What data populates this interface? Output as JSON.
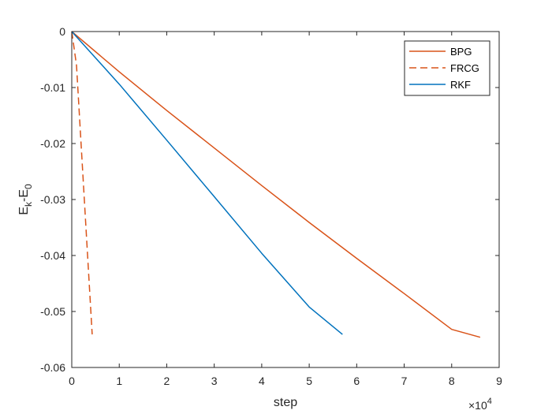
{
  "chart_data": {
    "type": "line",
    "xlabel": "step",
    "ylabel": "E_k-E_0",
    "x_exponent_label": "×10",
    "x_exponent_power": "4",
    "xlim": [
      0,
      9
    ],
    "ylim": [
      -0.06,
      0
    ],
    "x_ticks": [
      0,
      1,
      2,
      3,
      4,
      5,
      6,
      7,
      8,
      9
    ],
    "x_tick_labels": [
      "0",
      "1",
      "2",
      "3",
      "4",
      "5",
      "6",
      "7",
      "8",
      "9"
    ],
    "y_ticks": [
      0,
      -0.01,
      -0.02,
      -0.03,
      -0.04,
      -0.05,
      -0.06
    ],
    "y_tick_labels": [
      "0",
      "-0.01",
      "-0.02",
      "-0.03",
      "-0.04",
      "-0.05",
      "-0.06"
    ],
    "grid": false,
    "legend_position": "top-right",
    "series": [
      {
        "name": "BPG",
        "color": "#D95319",
        "style": "solid",
        "x": [
          0,
          1,
          2,
          3,
          4,
          5,
          6,
          7,
          8,
          8.6
        ],
        "y": [
          0,
          -0.0072,
          -0.0141,
          -0.0208,
          -0.0275,
          -0.0341,
          -0.0405,
          -0.0468,
          -0.0532,
          -0.0546
        ]
      },
      {
        "name": "FRCG",
        "color": "#D95319",
        "style": "dashed",
        "x": [
          0,
          0.1,
          0.43
        ],
        "y": [
          0,
          -0.006,
          -0.0541
        ]
      },
      {
        "name": "RKF",
        "color": "#0072BD",
        "style": "solid",
        "x": [
          0,
          1,
          2,
          3,
          4,
          5,
          5.7
        ],
        "y": [
          0,
          -0.0094,
          -0.0194,
          -0.0295,
          -0.0396,
          -0.0492,
          -0.0541
        ]
      }
    ]
  }
}
